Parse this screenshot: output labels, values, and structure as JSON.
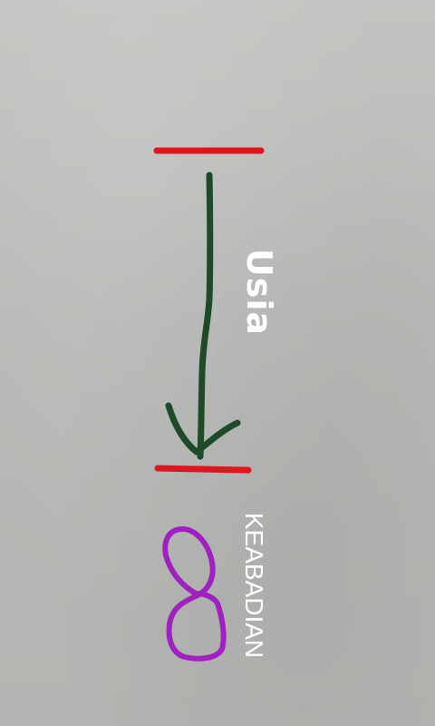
{
  "labels": {
    "age": "Usia",
    "eternity": "KEABADIAN"
  },
  "colors": {
    "surface": "#b9bbb8",
    "limit_lines": "#e0161e",
    "arrow": "#1e4a28",
    "infinity_symbol": "#a020c0",
    "text": "#ffffff"
  }
}
